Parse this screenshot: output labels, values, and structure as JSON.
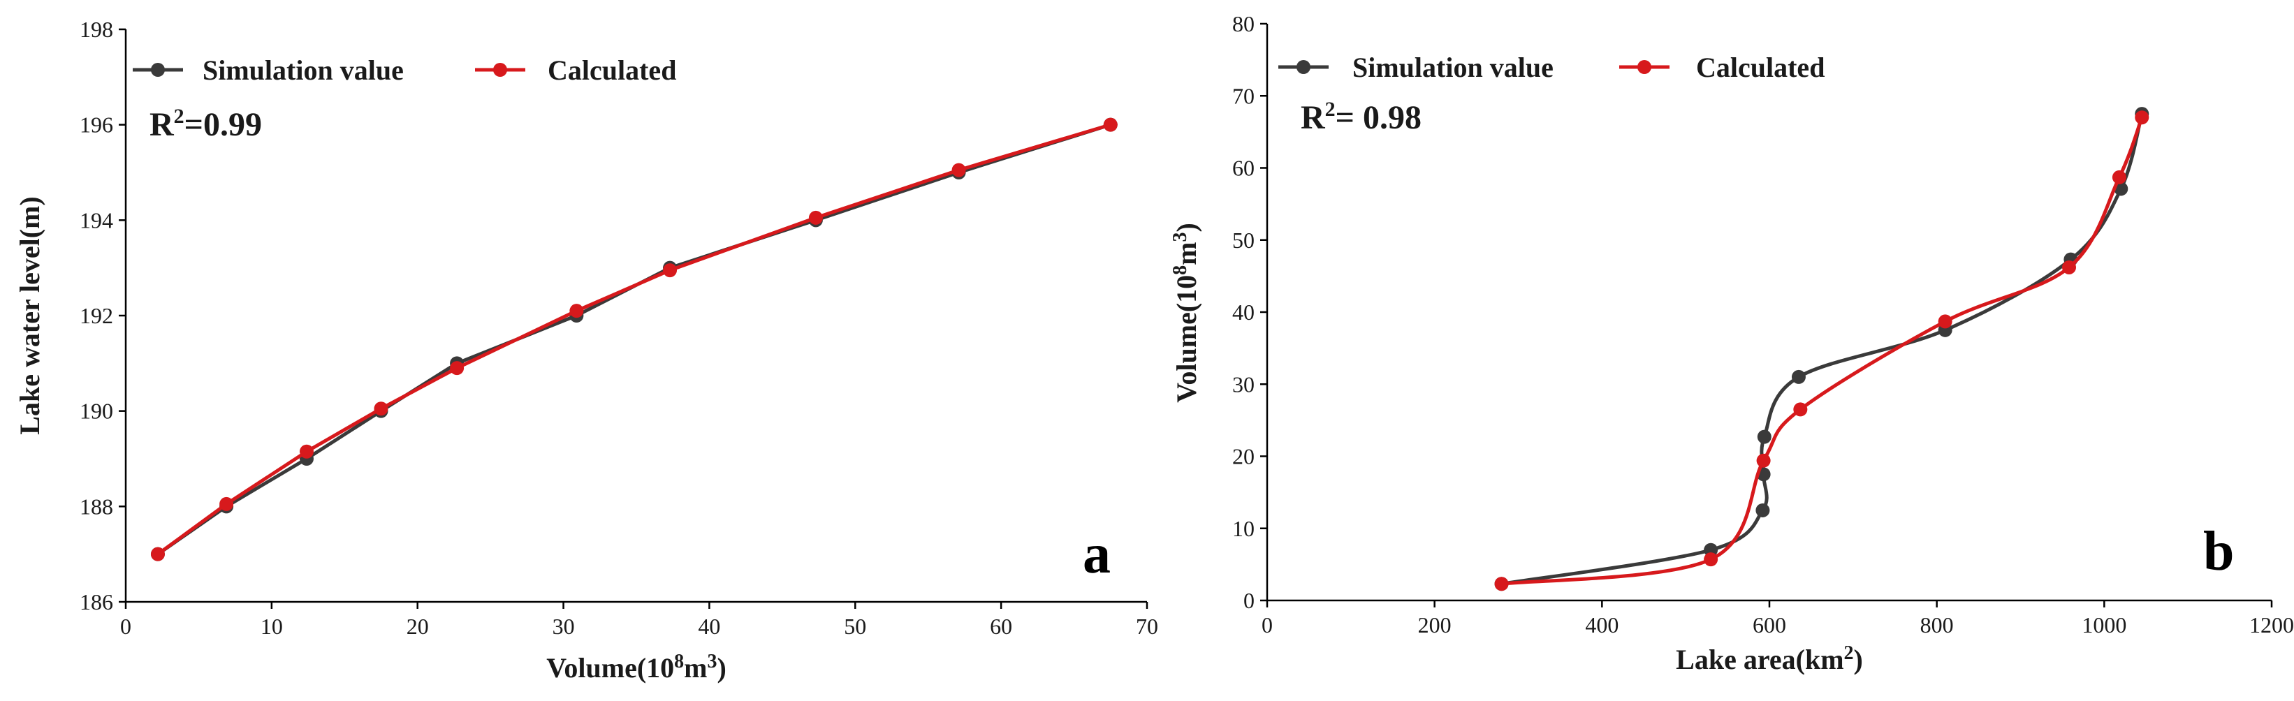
{
  "chart_data": [
    {
      "type": "line",
      "panel_label": "a",
      "xlabel_prefix": "Volume(10",
      "xlabel_sup": "8",
      "xlabel_suffix": "m",
      "xlabel_sup2": "3",
      "xlabel_close": ")",
      "ylabel": "Lake water level(m)",
      "xlim": [
        0,
        70
      ],
      "ylim": [
        186,
        198
      ],
      "xticks": [
        0,
        10,
        20,
        30,
        40,
        50,
        60,
        70
      ],
      "yticks": [
        186,
        188,
        190,
        192,
        194,
        196,
        198
      ],
      "r2_prefix": "R",
      "r2_sup": "2",
      "r2_suffix": "=0.99",
      "series": [
        {
          "name": "Simulation value",
          "color": "#3a3a3a",
          "x": [
            2.2,
            6.9,
            12.4,
            17.5,
            22.7,
            30.9,
            37.3,
            47.3,
            57.1,
            67.5
          ],
          "y": [
            187.0,
            188.0,
            189.0,
            190.0,
            191.0,
            192.0,
            193.0,
            194.0,
            195.0,
            196.0
          ]
        },
        {
          "name": "Calculated",
          "color": "#d7191c",
          "x": [
            2.2,
            6.9,
            12.4,
            17.5,
            22.7,
            30.9,
            37.3,
            47.3,
            57.1,
            67.5
          ],
          "y": [
            187.0,
            188.05,
            189.15,
            190.05,
            190.9,
            192.1,
            192.95,
            194.05,
            195.05,
            196.0
          ]
        }
      ]
    },
    {
      "type": "line",
      "panel_label": "b",
      "xlabel_prefix": "Lake area(km",
      "xlabel_sup": "2",
      "xlabel_close": ")",
      "ylabel_prefix": "Volume(10",
      "ylabel_sup": "8",
      "ylabel_suffix": "m",
      "ylabel_sup2": "3",
      "ylabel_close": ")",
      "xlim": [
        0,
        1200
      ],
      "ylim": [
        0,
        80
      ],
      "xticks": [
        0,
        200,
        400,
        600,
        800,
        1000,
        1200
      ],
      "yticks": [
        0,
        10,
        20,
        30,
        40,
        50,
        60,
        70,
        80
      ],
      "r2_prefix": "R",
      "r2_sup": "2",
      "r2_suffix": "= 0.98",
      "series": [
        {
          "name": "Simulation value",
          "color": "#3a3a3a",
          "x": [
            280,
            530,
            592,
            593,
            594,
            635,
            810,
            960,
            1020,
            1045
          ],
          "y": [
            2.3,
            7.0,
            12.5,
            17.5,
            22.7,
            31.0,
            37.5,
            47.3,
            57.1,
            67.5
          ]
        },
        {
          "name": "Calculated",
          "color": "#d7191c",
          "x": [
            280,
            530,
            593,
            637,
            810,
            958,
            1018,
            1045
          ],
          "y": [
            2.3,
            5.7,
            19.4,
            26.5,
            38.7,
            46.2,
            58.7,
            67.0
          ]
        }
      ]
    }
  ]
}
